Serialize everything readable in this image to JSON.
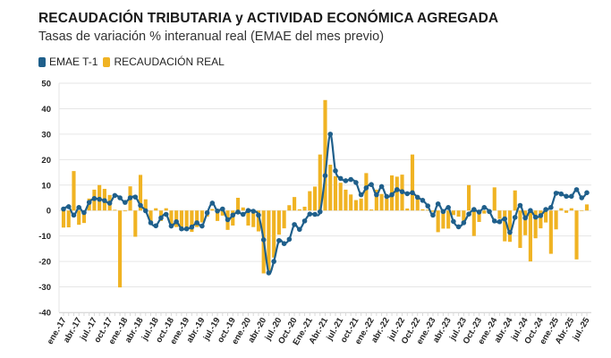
{
  "header": {
    "title": "RECAUDACIÓN TRIBUTARIA y ACTIVIDAD ECONÓMICA AGREGADA",
    "subtitle": "Tasas de variación % interanual real (EMAE del mes previo)"
  },
  "legend": [
    {
      "label": "EMAE T-1",
      "color": "#1f5f8b"
    },
    {
      "label": "RECAUDACIÓN REAL",
      "color": "#f0b323"
    }
  ],
  "chart_data": {
    "type": "bar+line",
    "title": "RECAUDACIÓN TRIBUTARIA y ACTIVIDAD ECONÓMICA AGREGADA",
    "subtitle": "Tasas de variación % interanual real (EMAE del mes previo)",
    "xlabel": "",
    "ylabel": "",
    "ylim": [
      -40,
      50
    ],
    "yticks": [
      50,
      40,
      30,
      20,
      10,
      0,
      -10,
      -20,
      -30,
      -40
    ],
    "grid": true,
    "legend_position": "top-left",
    "x_start": "2017-01",
    "n_months": 103,
    "x_tick_labels": [
      {
        "index": 0,
        "label": "ene.-17"
      },
      {
        "index": 3,
        "label": "abr.-17"
      },
      {
        "index": 6,
        "label": "jul.-17"
      },
      {
        "index": 9,
        "label": "oct.-17"
      },
      {
        "index": 12,
        "label": "ene.-18"
      },
      {
        "index": 15,
        "label": "abr.-18"
      },
      {
        "index": 18,
        "label": "jul.-18"
      },
      {
        "index": 21,
        "label": "oct.-18"
      },
      {
        "index": 24,
        "label": "ene.-19"
      },
      {
        "index": 27,
        "label": "abr.-19"
      },
      {
        "index": 30,
        "label": "jul.-19"
      },
      {
        "index": 33,
        "label": "oct.-19"
      },
      {
        "index": 36,
        "label": "ene.-20"
      },
      {
        "index": 39,
        "label": "abr.-20"
      },
      {
        "index": 42,
        "label": "jul.-20"
      },
      {
        "index": 45,
        "label": "Oct.-20"
      },
      {
        "index": 48,
        "label": "Ene.-21"
      },
      {
        "index": 51,
        "label": "Abr.-21"
      },
      {
        "index": 54,
        "label": "jul.-21"
      },
      {
        "index": 57,
        "label": "oct.-21"
      },
      {
        "index": 60,
        "label": "ene.-22"
      },
      {
        "index": 63,
        "label": "abr.-22"
      },
      {
        "index": 66,
        "label": "jul.-22"
      },
      {
        "index": 69,
        "label": "Oct.-22"
      },
      {
        "index": 72,
        "label": "ene.-23"
      },
      {
        "index": 75,
        "label": "abr.-23"
      },
      {
        "index": 78,
        "label": "jul.-23"
      },
      {
        "index": 81,
        "label": "Oct.-23"
      },
      {
        "index": 84,
        "label": "ene.-24"
      },
      {
        "index": 87,
        "label": "abr.-24"
      },
      {
        "index": 90,
        "label": "jul.-24"
      },
      {
        "index": 93,
        "label": "Oct.-24"
      },
      {
        "index": 96,
        "label": "ene.-25"
      },
      {
        "index": 99,
        "label": "Abr.-25"
      },
      {
        "index": 102,
        "label": "jul.-25"
      }
    ],
    "series": [
      {
        "name": "RECAUDACIÓN REAL",
        "type": "bar",
        "color": "#f0b323",
        "values": [
          -6.7,
          -6.6,
          15.5,
          -5.6,
          -4.9,
          4.7,
          8.2,
          10.0,
          8.5,
          6.1,
          0.3,
          -30.2,
          -0.3,
          9.5,
          -10.3,
          14.0,
          4.4,
          -4.3,
          0.9,
          -4.1,
          0.9,
          -6.5,
          -6.5,
          -6.5,
          -6.8,
          -8.4,
          -6.5,
          -4.7,
          -2.4,
          0.6,
          -4.1,
          -2.0,
          -7.6,
          -5.9,
          5.0,
          1.2,
          -5.9,
          -6.5,
          -8.2,
          -24.7,
          -24.7,
          -18.5,
          -9.5,
          -7.0,
          2.1,
          5.3,
          0.5,
          1.5,
          7.6,
          9.4,
          22.0,
          43.4,
          18.0,
          13.5,
          10.9,
          8.2,
          6.3,
          4.1,
          4.7,
          14.7,
          0.4,
          8.2,
          6.5,
          4.7,
          13.8,
          13.3,
          14.1,
          0.8,
          22.0,
          4.7,
          0.5,
          0.3,
          -0.5,
          -8.5,
          -7.1,
          -7.1,
          -1.8,
          -2.4,
          -4.0,
          10.0,
          -10.0,
          -4.5,
          -1.2,
          0.0,
          9.1,
          -3.3,
          -12.1,
          -12.3,
          7.9,
          -14.7,
          -9.7,
          -20.0,
          -10.9,
          -7.0,
          -4.7,
          -17.0,
          -7.4,
          0.9,
          -0.9,
          0.9,
          -19.2,
          0.0,
          2.4
        ]
      },
      {
        "name": "EMAE T-1",
        "type": "line",
        "color": "#1f5f8b",
        "values": [
          0.6,
          1.5,
          -1.8,
          1.2,
          -0.8,
          3.2,
          4.7,
          4.4,
          3.9,
          2.9,
          5.9,
          5.0,
          3.2,
          5.0,
          5.3,
          2.0,
          -0.1,
          -4.8,
          -6.0,
          -2.9,
          -1.5,
          -6.1,
          -4.4,
          -7.2,
          -7.2,
          -6.5,
          -4.8,
          -6.1,
          -0.9,
          2.9,
          -0.2,
          0.6,
          -3.6,
          -1.8,
          -0.6,
          -1.5,
          0.0,
          -0.3,
          -1.8,
          -11.5,
          -24.5,
          -20.0,
          -11.8,
          -13.0,
          -11.3,
          -5.5,
          -7.4,
          -4.1,
          -1.4,
          -1.5,
          -0.5,
          13.7,
          30.0,
          15.6,
          12.6,
          11.7,
          12.2,
          11.0,
          6.2,
          8.9,
          10.2,
          6.2,
          9.4,
          5.5,
          6.2,
          8.2,
          7.4,
          6.6,
          7.0,
          5.2,
          4.0,
          1.8,
          -1.8,
          2.6,
          -0.4,
          1.2,
          -4.3,
          -6.4,
          -4.8,
          -1.4,
          0.4,
          -0.6,
          1.2,
          -0.4,
          -4.1,
          -4.4,
          -3.3,
          -8.6,
          -2.7,
          2.0,
          -2.9,
          0.0,
          -2.6,
          -2.0,
          0.4,
          1.2,
          6.8,
          6.5,
          5.6,
          5.6,
          8.2,
          5.0,
          7.0
        ]
      }
    ]
  }
}
